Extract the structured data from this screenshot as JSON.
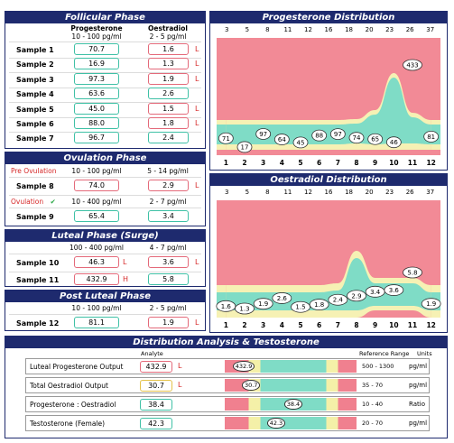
{
  "follicular": {
    "title": "Follicular Phase",
    "col1": "Progesterone",
    "col1_range": "10 - 100 pg/ml",
    "col2": "Oestradiol",
    "col2_range": "2 - 5 pg/ml",
    "samples": [
      {
        "label": "Sample 1",
        "prog": "70.7",
        "oes": "1.6",
        "oes_flag": "L"
      },
      {
        "label": "Sample 2",
        "prog": "16.9",
        "oes": "1.3",
        "oes_flag": "L"
      },
      {
        "label": "Sample 3",
        "prog": "97.3",
        "oes": "1.9",
        "oes_flag": "L"
      },
      {
        "label": "Sample 4",
        "prog": "63.6",
        "oes": "2.6",
        "oes_flag": ""
      },
      {
        "label": "Sample 5",
        "prog": "45.0",
        "oes": "1.5",
        "oes_flag": "L"
      },
      {
        "label": "Sample 6",
        "prog": "88.0",
        "oes": "1.8",
        "oes_flag": "L"
      },
      {
        "label": "Sample 7",
        "prog": "96.7",
        "oes": "2.4",
        "oes_flag": ""
      }
    ]
  },
  "ovulation": {
    "title": "Ovulation Phase",
    "pre_label": "Pre Ovulation",
    "pre_prog_range": "10 - 100 pg/ml",
    "pre_oes_range": "5 - 14 pg/ml",
    "s8": {
      "label": "Sample 8",
      "prog": "74.0",
      "oes": "2.9",
      "oes_flag": "L"
    },
    "ov_label": "Ovulation",
    "ov_check": "✔",
    "ov_prog_range": "10 - 400 pg/ml",
    "ov_oes_range": "2 - 7 pg/ml",
    "s9": {
      "label": "Sample 9",
      "prog": "65.4",
      "oes": "3.4"
    }
  },
  "luteal": {
    "title": "Luteal Phase (Surge)",
    "prog_range": "100 - 400 pg/ml",
    "oes_range": "4 - 7 pg/ml",
    "s10": {
      "label": "Sample 10",
      "prog": "46.3",
      "prog_flag": "L",
      "oes": "3.6",
      "oes_flag": "L"
    },
    "s11": {
      "label": "Sample 11",
      "prog": "432.9",
      "prog_flag": "H",
      "oes": "5.8"
    }
  },
  "post_luteal": {
    "title": "Post Luteal Phase",
    "prog_range": "10 - 100 pg/ml",
    "oes_range": "2 - 5 pg/ml",
    "s12": {
      "label": "Sample 12",
      "prog": "81.1",
      "oes": "1.9",
      "oes_flag": "L"
    }
  },
  "prog_chart": {
    "title": "Progesterone Distribution",
    "top_ticks": [
      "3",
      "5",
      "8",
      "11",
      "12",
      "16",
      "18",
      "20",
      "23",
      "26",
      "37"
    ],
    "bottom_ticks": [
      "1",
      "2",
      "3",
      "4",
      "5",
      "6",
      "7",
      "8",
      "9",
      "10",
      "11",
      "12"
    ],
    "labels": [
      "71",
      "17",
      "97",
      "64",
      "45",
      "88",
      "97",
      "74",
      "65",
      "46",
      "433",
      "81"
    ]
  },
  "oes_chart": {
    "title": "Oestradiol Distribution",
    "top_ticks": [
      "3",
      "5",
      "8",
      "11",
      "12",
      "16",
      "18",
      "20",
      "23",
      "26",
      "37"
    ],
    "bottom_ticks": [
      "1",
      "2",
      "3",
      "4",
      "5",
      "6",
      "7",
      "8",
      "9",
      "10",
      "11",
      "12"
    ],
    "labels": [
      "1.6",
      "1.3",
      "1.9",
      "2.6",
      "1.5",
      "1.8",
      "2.4",
      "2.9",
      "3.4",
      "3.6",
      "5.8",
      "1.9"
    ]
  },
  "chart_data": [
    {
      "type": "area",
      "title": "Progesterone Distribution",
      "x": [
        1,
        2,
        3,
        4,
        5,
        6,
        7,
        8,
        9,
        10,
        11,
        12
      ],
      "values": [
        70.7,
        16.9,
        97.3,
        63.6,
        45.0,
        88.0,
        96.7,
        74.0,
        65.4,
        46.3,
        432.9,
        81.1
      ]
    },
    {
      "type": "area",
      "title": "Oestradiol Distribution",
      "x": [
        1,
        2,
        3,
        4,
        5,
        6,
        7,
        8,
        9,
        10,
        11,
        12
      ],
      "values": [
        1.6,
        1.3,
        1.9,
        2.6,
        1.5,
        1.8,
        2.4,
        2.9,
        3.4,
        3.6,
        5.8,
        1.9
      ]
    }
  ],
  "analysis": {
    "title": "Distribution Analysis & Testosterone",
    "col_analyte": "Analyte",
    "col_ref": "Reference Range",
    "col_units": "Units",
    "rows": [
      {
        "name": "Luteal Progesterone Output",
        "value": "432.9",
        "flag": "L",
        "range": "500 - 1300",
        "units": "pg/ml"
      },
      {
        "name": "Total Oestradiol Output",
        "value": "30.7",
        "flag": "L",
        "range": "35 - 70",
        "units": "pg/ml"
      },
      {
        "name": "Progesterone : Oestradiol",
        "value": "38.4",
        "flag": "",
        "range": "10 - 40",
        "units": "Ratio"
      },
      {
        "name": "Testosterone (Female)",
        "value": "42.3",
        "flag": "",
        "range": "20 - 70",
        "units": "pg/ml"
      }
    ]
  }
}
